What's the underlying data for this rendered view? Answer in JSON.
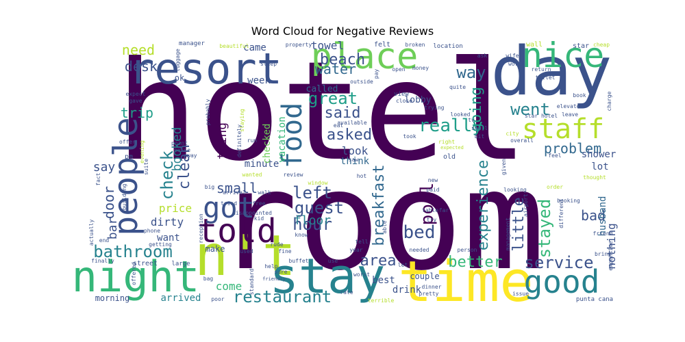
{
  "chart_data": {
    "type": "wordcloud",
    "title": "Word Cloud for Negative Reviews",
    "colormap": "viridis",
    "words": [
      {
        "text": "hotel",
        "weight": 1.0
      },
      {
        "text": "room",
        "weight": 0.98
      },
      {
        "text": "day",
        "weight": 0.5
      },
      {
        "text": "n't",
        "weight": 0.48
      },
      {
        "text": "time",
        "weight": 0.42
      },
      {
        "text": "stay",
        "weight": 0.42
      },
      {
        "text": "night",
        "weight": 0.38
      },
      {
        "text": "resort",
        "weight": 0.34
      },
      {
        "text": "place",
        "weight": 0.32
      },
      {
        "text": "nice",
        "weight": 0.32
      },
      {
        "text": "good",
        "weight": 0.3
      },
      {
        "text": "people",
        "weight": 0.3
      },
      {
        "text": "told",
        "weight": 0.28
      },
      {
        "text": "got",
        "weight": 0.26
      },
      {
        "text": "food",
        "weight": 0.25
      },
      {
        "text": "staff",
        "weight": 0.24
      },
      {
        "text": "restaurant",
        "weight": 0.19
      },
      {
        "text": "bathroom",
        "weight": 0.17
      },
      {
        "text": "service",
        "weight": 0.17
      },
      {
        "text": "really",
        "weight": 0.17
      },
      {
        "text": "great",
        "weight": 0.16
      },
      {
        "text": "problem",
        "weight": 0.16
      },
      {
        "text": "guest",
        "weight": 0.15
      },
      {
        "text": "left",
        "weight": 0.15
      },
      {
        "text": "hour",
        "weight": 0.15
      },
      {
        "text": "bed",
        "weight": 0.15
      },
      {
        "text": "pool",
        "weight": 0.15
      },
      {
        "text": "way",
        "weight": 0.15
      },
      {
        "text": "area",
        "weight": 0.15
      },
      {
        "text": "beach",
        "weight": 0.15
      },
      {
        "text": "stayed",
        "weight": 0.14
      },
      {
        "text": "breakfast",
        "weight": 0.14
      },
      {
        "text": "experience",
        "weight": 0.14
      },
      {
        "text": "went",
        "weight": 0.14
      },
      {
        "text": "better",
        "weight": 0.14
      },
      {
        "text": "check",
        "weight": 0.14
      },
      {
        "text": "clean",
        "weight": 0.13
      },
      {
        "text": "water",
        "weight": 0.13
      },
      {
        "text": "asked",
        "weight": 0.13
      },
      {
        "text": "going",
        "weight": 0.13
      },
      {
        "text": "little",
        "weight": 0.13
      },
      {
        "text": "said",
        "weight": 0.12
      },
      {
        "text": "need",
        "weight": 0.12
      },
      {
        "text": "desk",
        "weight": 0.12
      },
      {
        "text": "trip",
        "weight": 0.12
      },
      {
        "text": "booked",
        "weight": 0.12
      },
      {
        "text": "small",
        "weight": 0.12
      },
      {
        "text": "thing",
        "weight": 0.12
      },
      {
        "text": "door",
        "weight": 0.12
      },
      {
        "text": "bar",
        "weight": 0.12
      },
      {
        "text": "say",
        "weight": 0.12
      },
      {
        "text": "bad",
        "weight": 0.12
      },
      {
        "text": "floor",
        "weight": 0.11
      },
      {
        "text": "nothing",
        "weight": 0.11
      },
      {
        "text": "drink",
        "weight": 0.1
      },
      {
        "text": "best",
        "weight": 0.1
      },
      {
        "text": "lot",
        "weight": 0.1
      },
      {
        "text": "dirty",
        "weight": 0.1
      },
      {
        "text": "price",
        "weight": 0.1
      },
      {
        "text": "want",
        "weight": 0.1
      },
      {
        "text": "come",
        "weight": 0.1
      },
      {
        "text": "look",
        "weight": 0.1
      },
      {
        "text": "think",
        "weight": 0.1
      },
      {
        "text": "minute",
        "weight": 0.1
      },
      {
        "text": "towel",
        "weight": 0.1
      },
      {
        "text": "came",
        "weight": 0.1
      },
      {
        "text": "vacation",
        "weight": 0.1
      },
      {
        "text": "checked",
        "weight": 0.1
      },
      {
        "text": "husband",
        "weight": 0.1
      },
      {
        "text": "shower",
        "weight": 0.1
      },
      {
        "text": "morning",
        "weight": 0.1
      },
      {
        "text": "arrived",
        "weight": 0.1
      },
      {
        "text": "week",
        "weight": 0.1
      },
      {
        "text": "make",
        "weight": 0.09
      },
      {
        "text": "called",
        "weight": 0.09
      },
      {
        "text": "lobby",
        "weight": 0.09
      },
      {
        "text": "ok",
        "weight": 0.09
      },
      {
        "text": "couple",
        "weight": 0.09
      },
      {
        "text": "work",
        "weight": 0.08
      },
      {
        "text": "reservation",
        "weight": 0.08
      },
      {
        "text": "pm",
        "weight": 0.08
      },
      {
        "text": "manager",
        "weight": 0.06
      },
      {
        "text": "beautiful",
        "weight": 0.05
      },
      {
        "text": "property",
        "weight": 0.05
      },
      {
        "text": "felt",
        "weight": 0.06
      },
      {
        "text": "location",
        "weight": 0.06
      },
      {
        "text": "wall",
        "weight": 0.06
      },
      {
        "text": "star",
        "weight": 0.06
      },
      {
        "text": "cheap",
        "weight": 0.05
      },
      {
        "text": "sleep",
        "weight": 0.05
      },
      {
        "text": "luggage",
        "weight": 0.05
      },
      {
        "text": "outside",
        "weight": 0.05
      },
      {
        "text": "pay",
        "weight": 0.05
      },
      {
        "text": "open",
        "weight": 0.05
      },
      {
        "text": "money",
        "weight": 0.05
      },
      {
        "text": "ask",
        "weight": 0.05
      },
      {
        "text": "horrible",
        "weight": 0.05
      },
      {
        "text": "wife",
        "weight": 0.05
      },
      {
        "text": "worth",
        "weight": 0.05
      },
      {
        "text": "return",
        "weight": 0.05
      },
      {
        "text": "toilet",
        "weight": 0.05
      },
      {
        "text": "expect",
        "weight": 0.05
      },
      {
        "text": "gave",
        "weight": 0.05
      },
      {
        "text": "view",
        "weight": 0.05
      },
      {
        "text": "close",
        "weight": 0.05
      },
      {
        "text": "quite",
        "weight": 0.05
      },
      {
        "text": "book",
        "weight": 0.05
      },
      {
        "text": "charge",
        "weight": 0.05
      },
      {
        "text": "elevator",
        "weight": 0.05
      },
      {
        "text": "trying",
        "weight": 0.05
      },
      {
        "text": "leave",
        "weight": 0.05
      },
      {
        "text": "probably",
        "weight": 0.05
      },
      {
        "text": "staying",
        "weight": 0.05
      },
      {
        "text": "eat",
        "weight": 0.05
      },
      {
        "text": "tv",
        "weight": 0.05
      },
      {
        "text": "looked",
        "weight": 0.05
      },
      {
        "text": "star hotel",
        "weight": 0.05
      },
      {
        "text": "available",
        "weight": 0.05
      },
      {
        "text": "smell",
        "weight": 0.05
      },
      {
        "text": "bit",
        "weight": 0.05
      },
      {
        "text": "offer",
        "weight": 0.05
      },
      {
        "text": "evening",
        "weight": 0.05
      },
      {
        "text": "definitely",
        "weight": 0.05
      },
      {
        "text": "run",
        "weight": 0.05
      },
      {
        "text": "took",
        "weight": 0.05
      },
      {
        "text": "city",
        "weight": 0.05
      },
      {
        "text": "overall",
        "weight": 0.05
      },
      {
        "text": "point",
        "weight": 0.05
      },
      {
        "text": "noise",
        "weight": 0.05
      },
      {
        "text": "right",
        "weight": 0.05
      },
      {
        "text": "expected",
        "weight": 0.04
      },
      {
        "text": "feel",
        "weight": 0.05
      },
      {
        "text": "suite",
        "weight": 0.05
      },
      {
        "text": "away",
        "weight": 0.05
      },
      {
        "text": "review",
        "weight": 0.05
      },
      {
        "text": "saw",
        "weight": 0.05
      },
      {
        "text": "old",
        "weight": 0.05
      },
      {
        "text": "given",
        "weight": 0.05
      },
      {
        "text": "thought",
        "weight": 0.05
      },
      {
        "text": "wanted",
        "weight": 0.05
      },
      {
        "text": "window",
        "weight": 0.05
      },
      {
        "text": "hot",
        "weight": 0.05
      },
      {
        "text": "order",
        "weight": 0.05
      },
      {
        "text": "fact",
        "weight": 0.05
      },
      {
        "text": "building",
        "weight": 0.05
      },
      {
        "text": "big",
        "weight": 0.05
      },
      {
        "text": "arrival",
        "weight": 0.05
      },
      {
        "text": "walk",
        "weight": 0.05
      },
      {
        "text": "new",
        "weight": 0.05
      },
      {
        "text": "looking",
        "weight": 0.05
      },
      {
        "text": "airport",
        "weight": 0.05
      },
      {
        "text": "different",
        "weight": 0.05
      },
      {
        "text": "free",
        "weight": 0.05
      },
      {
        "text": "paid",
        "weight": 0.05
      },
      {
        "text": "far",
        "weight": 0.05
      },
      {
        "text": "booking",
        "weight": 0.05
      },
      {
        "text": "actually",
        "weight": 0.05
      },
      {
        "text": "tried",
        "weight": 0.05
      },
      {
        "text": "disappointed",
        "weight": 0.05
      },
      {
        "text": "kid",
        "weight": 0.05
      },
      {
        "text": "able",
        "weight": 0.05
      },
      {
        "text": "table",
        "weight": 0.05
      },
      {
        "text": "try",
        "weight": 0.05
      },
      {
        "text": "reception",
        "weight": 0.05
      },
      {
        "text": "know",
        "weight": 0.05
      },
      {
        "text": "management",
        "weight": 0.05
      },
      {
        "text": "end",
        "weight": 0.05
      },
      {
        "text": "phone",
        "weight": 0.05
      },
      {
        "text": "getting",
        "weight": 0.05
      },
      {
        "text": "rude",
        "weight": 0.05
      },
      {
        "text": "fine",
        "weight": 0.05
      },
      {
        "text": "tell",
        "weight": 0.05
      },
      {
        "text": "needed",
        "weight": 0.05
      },
      {
        "text": "person",
        "weight": 0.05
      },
      {
        "text": "friend",
        "weight": 0.05
      },
      {
        "text": "bring",
        "weight": 0.05
      },
      {
        "text": "expensive",
        "weight": 0.05
      },
      {
        "text": "used",
        "weight": 0.05
      },
      {
        "text": "year",
        "weight": 0.05
      },
      {
        "text": "dinner",
        "weight": 0.05
      },
      {
        "text": "finally",
        "weight": 0.05
      },
      {
        "text": "street",
        "weight": 0.05
      },
      {
        "text": "large",
        "weight": 0.05
      },
      {
        "text": "help",
        "weight": 0.05
      },
      {
        "text": "sure",
        "weight": 0.05
      },
      {
        "text": "friendly",
        "weight": 0.04
      },
      {
        "text": "buffet",
        "weight": 0.05
      },
      {
        "text": "use",
        "weight": 0.05
      },
      {
        "text": "let",
        "weight": 0.05
      },
      {
        "text": "offered",
        "weight": 0.05
      },
      {
        "text": "bag",
        "weight": 0.05
      },
      {
        "text": "standard",
        "weight": 0.05
      },
      {
        "text": "poor",
        "weight": 0.05
      },
      {
        "text": "rate",
        "weight": 0.05
      },
      {
        "text": "worst",
        "weight": 0.05
      },
      {
        "text": "pretty",
        "weight": 0.05
      },
      {
        "text": "terrible",
        "weight": 0.05
      },
      {
        "text": "issue",
        "weight": 0.05
      },
      {
        "text": "punta cana",
        "weight": 0.05
      },
      {
        "text": "broken",
        "weight": 0.05
      }
    ]
  }
}
